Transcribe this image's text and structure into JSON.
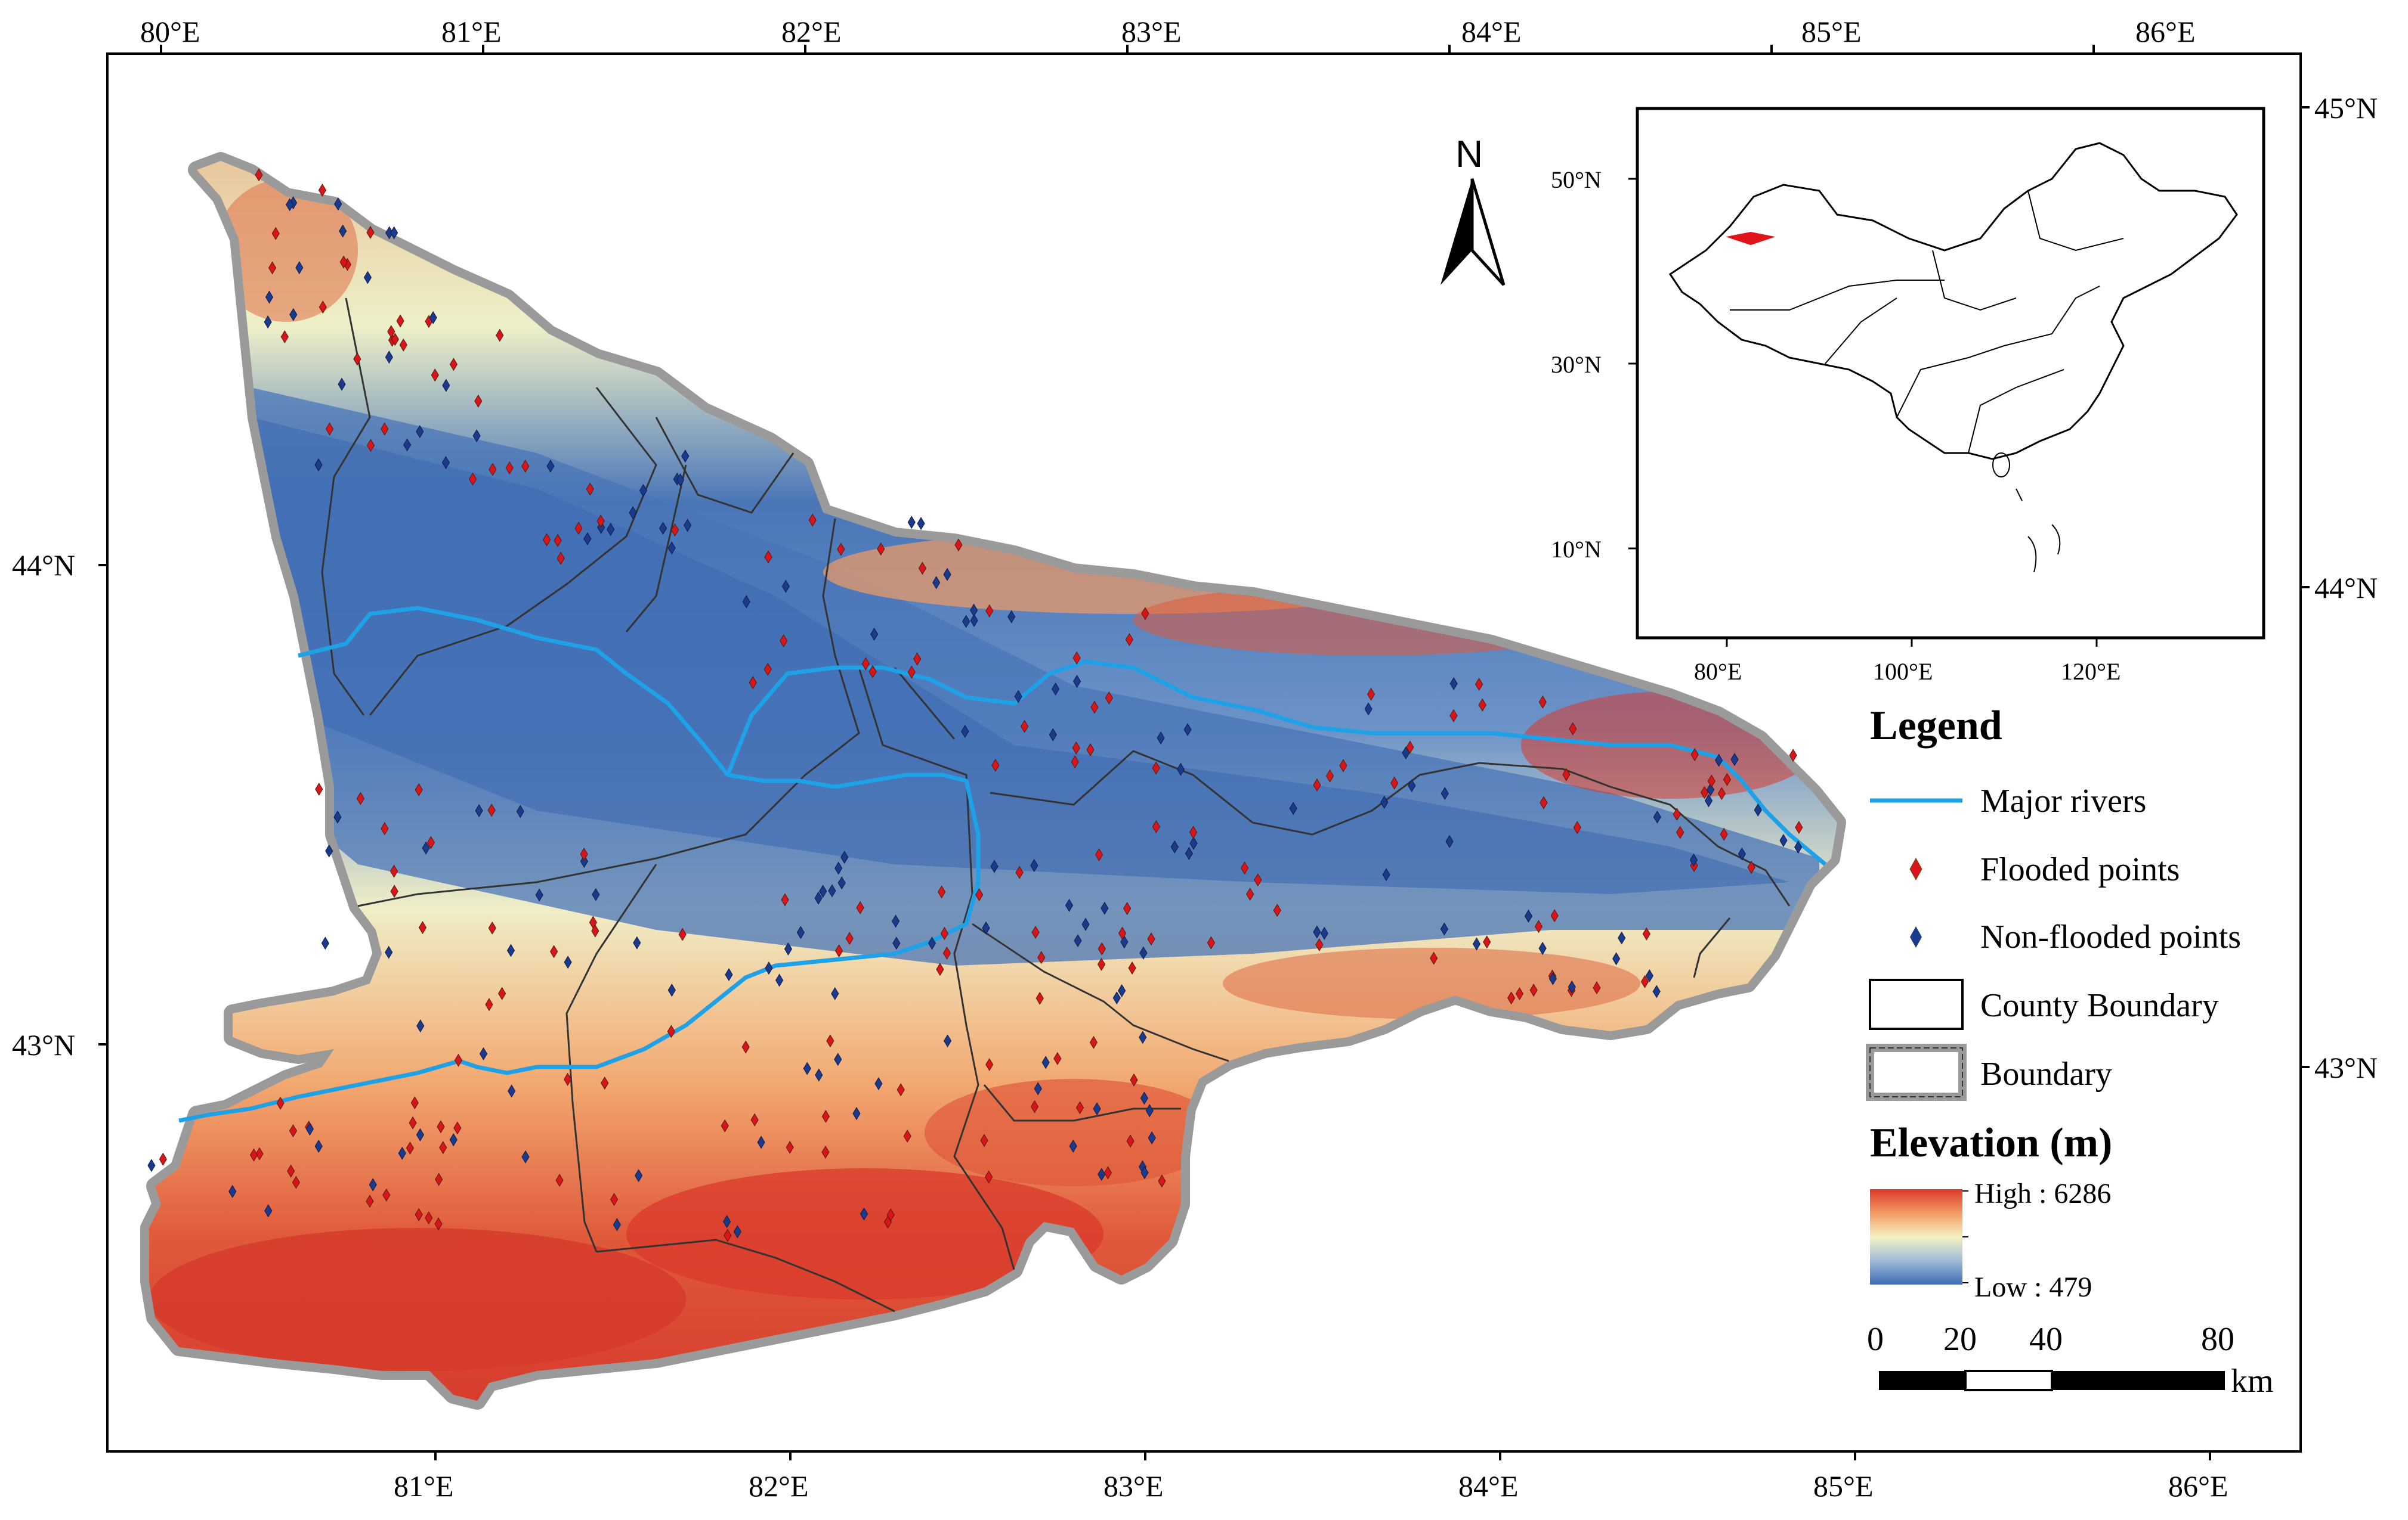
{
  "map": {
    "top_lon_labels": [
      "80°E",
      "81°E",
      "82°E",
      "83°E",
      "84°E",
      "85°E",
      "86°E"
    ],
    "bottom_lon_labels": [
      "81°E",
      "82°E",
      "83°E",
      "84°E",
      "85°E",
      "86°E"
    ],
    "left_lat_labels": [
      "44°N",
      "43°N"
    ],
    "right_lat_labels": [
      "45°N",
      "44°N",
      "43°N"
    ],
    "north_arrow_label": "N",
    "colors": {
      "river": "#1ea1e6",
      "flooded": "#d9141c",
      "non_flooded": "#1c3a8c",
      "elevation_low": "#3d6bb3",
      "elevation_mid": "#f5f2c2",
      "elevation_high": "#d93a2b"
    }
  },
  "inset": {
    "lat_labels": [
      "50°N",
      "30°N",
      "10°N"
    ],
    "lon_labels": [
      "80°E",
      "100°E",
      "120°E"
    ],
    "highlight_color": "#e0141b"
  },
  "legend": {
    "title": "Legend",
    "items": [
      {
        "label": "Major rivers",
        "icon": "river-line-icon"
      },
      {
        "label": "Flooded points",
        "icon": "red-diamond-icon"
      },
      {
        "label": "Non-flooded points",
        "icon": "blue-diamond-icon"
      },
      {
        "label": "County Boundary",
        "icon": "county-box-icon"
      },
      {
        "label": "Boundary",
        "icon": "boundary-box-icon"
      }
    ],
    "elevation_title": "Elevation (m)",
    "elevation_high": "High : 6286",
    "elevation_low": "Low : 479",
    "scale_labels": [
      "0",
      "20",
      "40",
      "80"
    ],
    "scale_unit": "km"
  }
}
